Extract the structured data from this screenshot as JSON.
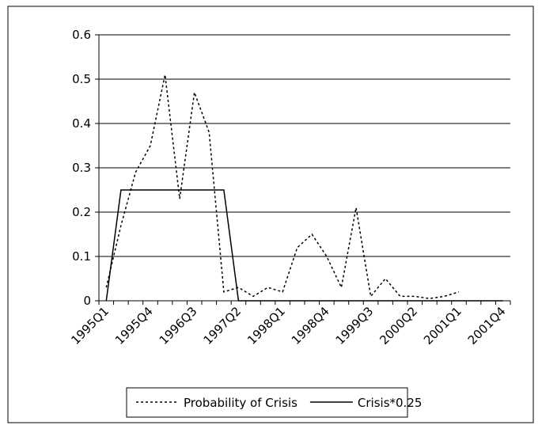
{
  "chart_data": {
    "type": "line",
    "categories": [
      "1995Q1",
      null,
      null,
      "1995Q4",
      null,
      null,
      "1996Q3",
      null,
      null,
      "1997Q2",
      null,
      null,
      "1998Q1",
      null,
      null,
      "1998Q4",
      null,
      null,
      "1999Q3",
      null,
      null,
      "2000Q2",
      null,
      null,
      "2001Q1",
      null,
      null,
      "2001Q4"
    ],
    "series": [
      {
        "name": "Probability of Crisis",
        "color": "#000000",
        "dash": "dotted",
        "values": [
          0.03,
          0.17,
          0.29,
          0.35,
          0.51,
          0.23,
          0.47,
          0.38,
          0.02,
          0.03,
          0.01,
          0.03,
          0.02,
          0.12,
          0.15,
          0.1,
          0.03,
          0.21,
          0.01,
          0.05,
          0.01,
          0.01,
          0.005,
          0.01,
          0.02,
          null,
          null,
          null
        ]
      },
      {
        "name": "Crisis*0.25",
        "color": "#000000",
        "dash": "solid",
        "values": [
          0,
          0.25,
          0.25,
          0.25,
          0.25,
          0.25,
          0.25,
          0.25,
          0.25,
          0,
          0,
          0,
          0,
          0,
          0,
          0,
          0,
          0,
          0,
          0,
          0,
          0,
          0,
          0,
          0,
          0,
          0,
          0
        ]
      }
    ],
    "ylim": [
      0,
      0.6
    ],
    "yticks": [
      0,
      0.1,
      0.2,
      0.3,
      0.4,
      0.5,
      0.6
    ],
    "grid": true,
    "legend": "bottom"
  }
}
